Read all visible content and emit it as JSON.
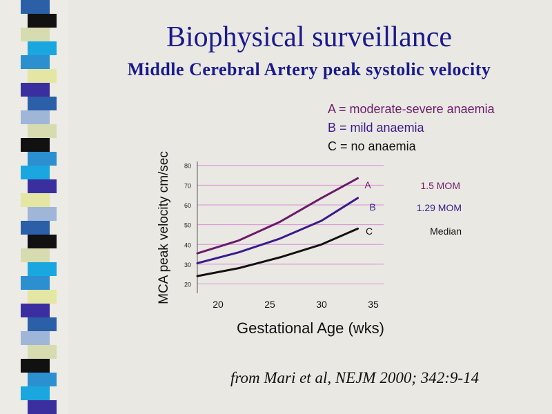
{
  "slide": {
    "title": "Biophysical surveillance",
    "subtitle": "Middle Cerebral Artery peak systolic velocity",
    "source": "from Mari et al, NEJM 2000; 342:9-14"
  },
  "legend": [
    {
      "text": "A = moderate-severe anaemia",
      "color": "#6a1a6a"
    },
    {
      "text": "B = mild anaemia",
      "color": "#3a1a8c"
    },
    {
      "text": "C = no anaemia",
      "color": "#111111"
    }
  ],
  "colors": {
    "stripes": [
      "#2b5fa8",
      "#e4e6a4",
      "#1aa7e0",
      "#111111",
      "#9fb6d9",
      "#3b2fa0",
      "#2c8fd0",
      "#d7dcb0"
    ],
    "gridline": "#d98fd6",
    "axis": "#555555"
  },
  "chart_data": {
    "type": "line",
    "xlabel": "Gestational Age  (wks)",
    "ylabel": "MCA peak velocity cm/sec",
    "xlim": [
      18,
      36
    ],
    "ylim": [
      16,
      82
    ],
    "x_ticks": [
      20,
      25,
      30,
      35
    ],
    "y_ticks": [
      20,
      30,
      40,
      50,
      60,
      70,
      80
    ],
    "grid": true,
    "series": [
      {
        "name": "A",
        "label": "1.5 MOM",
        "color": "#6a1a6a",
        "x": [
          18,
          22,
          26,
          30,
          33.5
        ],
        "y": [
          35.5,
          42,
          51.5,
          63.5,
          73.5
        ]
      },
      {
        "name": "B",
        "label": "1.29 MOM",
        "color": "#3a1a8c",
        "x": [
          18,
          22,
          26,
          30,
          33.5
        ],
        "y": [
          30.5,
          36,
          43,
          52,
          63.5
        ]
      },
      {
        "name": "C",
        "label": "Median",
        "color": "#111111",
        "x": [
          18,
          22,
          26,
          30,
          33.5
        ],
        "y": [
          24,
          28,
          33.5,
          40,
          48
        ]
      }
    ]
  }
}
